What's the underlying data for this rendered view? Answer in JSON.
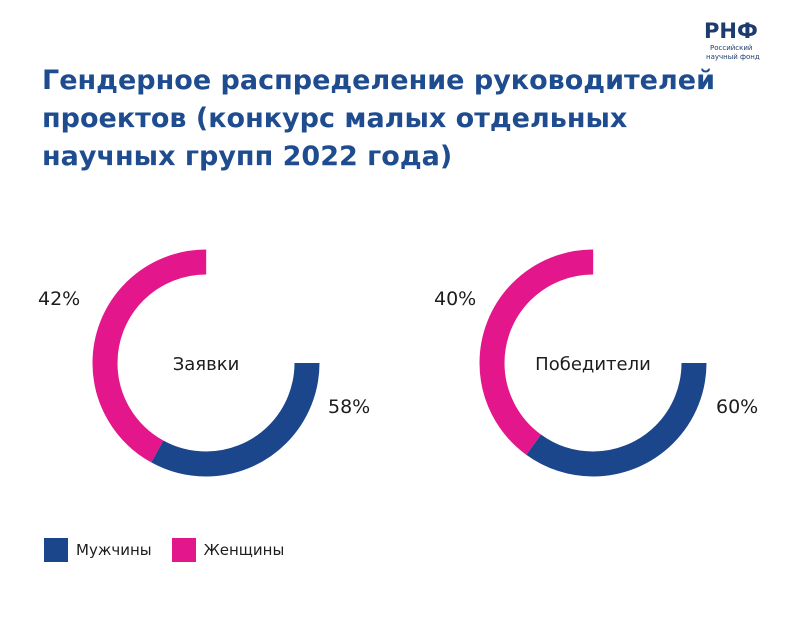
{
  "brand": {
    "logo_text": "РНФ",
    "logo_subtitle_1": "Российский",
    "logo_subtitle_2": "научный фонд",
    "colors": {
      "blue": "#1e4c8f",
      "pink": "#e5258a",
      "dark_blue": "#1e3b6e"
    }
  },
  "title": "Гендерное распределение руководителей проектов (конкурс малых отдельных научных групп 2022 года)",
  "colors": {
    "men": "#1b468c",
    "women": "#e3168b"
  },
  "chart_data": [
    {
      "type": "pie",
      "center_label": "Заявки",
      "slices": [
        {
          "label": "Мужчины",
          "value": 58,
          "display": "58%"
        },
        {
          "label": "Женщины",
          "value": 42,
          "display": "42%"
        }
      ]
    },
    {
      "type": "pie",
      "center_label": "Победители",
      "slices": [
        {
          "label": "Мужчины",
          "value": 60,
          "display": "60%"
        },
        {
          "label": "Женщины",
          "value": 40,
          "display": "40%"
        }
      ]
    }
  ],
  "legend": {
    "placement": "bottom-left",
    "items": [
      {
        "label": "Мужчины",
        "color": "#1b468c"
      },
      {
        "label": "Женщины",
        "color": "#e3168b"
      }
    ]
  }
}
